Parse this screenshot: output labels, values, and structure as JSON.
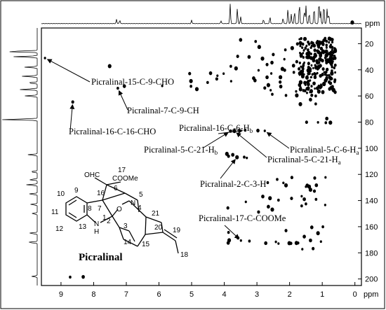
{
  "chart_data": {
    "type": "heatmap",
    "title": "",
    "xlabel": "ppm",
    "ylabel": "ppm",
    "x_reversed": true,
    "y_reversed": true,
    "xlim": [
      9.6,
      -0.2
    ],
    "ylim": [
      8,
      205
    ],
    "x_ticks": [
      {
        "value": 9,
        "label": "9"
      },
      {
        "value": 8,
        "label": "8"
      },
      {
        "value": 7,
        "label": "7"
      },
      {
        "value": 6,
        "label": "6"
      },
      {
        "value": 5,
        "label": "5"
      },
      {
        "value": 4,
        "label": "4"
      },
      {
        "value": 3,
        "label": "3"
      },
      {
        "value": 2,
        "label": "2"
      },
      {
        "value": 1,
        "label": "1"
      },
      {
        "value": 0,
        "label": "0"
      }
    ],
    "y_ticks": [
      {
        "value": 20,
        "label": "20"
      },
      {
        "value": 40,
        "label": "40"
      },
      {
        "value": 60,
        "label": "60"
      },
      {
        "value": 80,
        "label": "80"
      },
      {
        "value": 100,
        "label": "100"
      },
      {
        "value": 120,
        "label": "120"
      },
      {
        "value": 140,
        "label": "140"
      },
      {
        "value": 160,
        "label": "160"
      },
      {
        "value": 180,
        "label": "180"
      },
      {
        "value": 200,
        "label": "200"
      }
    ],
    "peaks": [
      [
        9.49,
        31.0
      ],
      [
        8.64,
        64.6
      ],
      [
        7.51,
        37.2
      ],
      [
        7.26,
        54.1
      ],
      [
        7.06,
        52.5
      ],
      [
        5.9,
        52.3
      ],
      [
        5.06,
        42.9
      ],
      [
        5.02,
        48.6
      ],
      [
        5.02,
        52.6
      ],
      [
        4.42,
        42.6
      ],
      [
        4.02,
        42.9
      ],
      [
        3.81,
        86.9
      ],
      [
        3.69,
        86.8
      ],
      [
        3.36,
        86.2
      ],
      [
        2.97,
        86.5
      ],
      [
        2.76,
        86.7
      ],
      [
        2.76,
        53.9
      ],
      [
        2.65,
        51.7
      ],
      [
        2.53,
        58.7
      ],
      [
        3.1,
        46.4
      ],
      [
        2.58,
        55.6
      ],
      [
        2.69,
        36.0
      ],
      [
        2.93,
        22.5
      ],
      [
        3.04,
        18.3
      ],
      [
        3.5,
        17.1
      ],
      [
        3.79,
        48.7
      ],
      [
        3.59,
        29.7
      ],
      [
        3.64,
        38.9
      ],
      [
        3.8,
        37.3
      ],
      [
        3.24,
        30.1
      ],
      [
        4.21,
        44.5
      ],
      [
        4.23,
        47.0
      ],
      [
        4.84,
        54.8
      ],
      [
        4.51,
        49.7
      ],
      [
        3.06,
        48.1
      ],
      [
        3.34,
        141.0
      ],
      [
        3.89,
        145.7
      ],
      [
        3.61,
        106.9
      ],
      [
        3.39,
        106.8
      ],
      [
        3.74,
        105.0
      ],
      [
        3.31,
        107.4
      ],
      [
        3.87,
        106.1
      ],
      [
        3.92,
        104.3
      ],
      [
        3.23,
        171.0
      ],
      [
        3.88,
        172.4
      ],
      [
        3.49,
        170.6
      ],
      [
        3.58,
        168.6
      ],
      [
        3.85,
        170.4
      ],
      [
        3.87,
        164.4
      ],
      [
        2.73,
        172.6
      ],
      [
        2.42,
        171.6
      ],
      [
        2.95,
        148.8
      ],
      [
        2.53,
        146.9
      ],
      [
        2.38,
        123.8
      ],
      [
        2.65,
        144.7
      ],
      [
        2.19,
        126.5
      ],
      [
        1.94,
        138.4
      ],
      [
        2.6,
        138.2
      ],
      [
        2.67,
        126.3
      ],
      [
        2.82,
        136.9
      ],
      [
        1.63,
        136.7
      ],
      [
        1.93,
        122.4
      ],
      [
        2.11,
        128.4
      ],
      [
        2.34,
        139.7
      ],
      [
        1.55,
        167.6
      ],
      [
        2.34,
        172.9
      ],
      [
        2.11,
        163.0
      ],
      [
        2.01,
        172.6
      ],
      [
        1.74,
        172.5
      ],
      [
        1.36,
        170.5
      ],
      [
        1.61,
        177.2
      ],
      [
        1.96,
        172.8
      ],
      [
        1.13,
        165.0
      ],
      [
        0.98,
        160.1
      ],
      [
        1.32,
        160.5
      ],
      [
        1.04,
        171.4
      ],
      [
        1.28,
        176.8
      ],
      [
        1.79,
        172.5
      ],
      [
        1.19,
        139.1
      ],
      [
        1.46,
        128.4
      ],
      [
        1.5,
        129.4
      ],
      [
        1.46,
        128.7
      ],
      [
        1.4,
        129.4
      ],
      [
        1.5,
        142.6
      ],
      [
        1.18,
        128.3
      ],
      [
        0.91,
        143.4
      ],
      [
        1.24,
        132.8
      ],
      [
        1.36,
        131.7
      ],
      [
        1.63,
        144.1
      ],
      [
        1.55,
        139.0
      ],
      [
        0.9,
        122.3
      ],
      [
        1.23,
        122.8
      ],
      [
        0.75,
        80.4
      ],
      [
        0.89,
        80.5
      ],
      [
        0.86,
        77.3
      ],
      [
        1.13,
        80.2
      ],
      [
        1.48,
        80.1
      ],
      [
        1.67,
        66.3
      ],
      [
        1.2,
        66.1
      ],
      [
        1.36,
        62.8
      ],
      [
        1.67,
        21.7
      ],
      [
        1.76,
        20.2
      ],
      [
        1.53,
        16.4
      ],
      [
        1.64,
        28.2
      ],
      [
        1.12,
        21.2
      ],
      [
        0.96,
        27.1
      ],
      [
        1.78,
        33.8
      ],
      [
        1.92,
        23.4
      ],
      [
        1.87,
        41.9
      ],
      [
        1.25,
        50.4
      ],
      [
        0.91,
        43.6
      ],
      [
        2.5,
        28.3
      ],
      [
        2.83,
        31.4
      ],
      [
        1.58,
        36.8
      ],
      [
        1.88,
        36.8
      ],
      [
        2.16,
        31.9
      ],
      [
        2.15,
        40.3
      ],
      [
        2.22,
        39.3
      ],
      [
        2.13,
        24.7
      ],
      [
        2.54,
        34.5
      ],
      [
        2.56,
        42.8
      ],
      [
        2.29,
        49.4
      ],
      [
        2.28,
        45.7
      ],
      [
        2.11,
        59.6
      ],
      [
        2.69,
        45.7
      ],
      [
        2.95,
        40.4
      ],
      [
        1.71,
        39.3
      ],
      [
        1.78,
        59.6
      ],
      [
        1.2,
        60.0
      ],
      [
        2.27,
        52.8
      ],
      [
        1.8,
        56.5
      ],
      [
        1.32,
        59.5
      ],
      [
        0.08,
        3.8
      ],
      [
        8.72,
        198.6
      ],
      [
        8.32,
        198.4
      ]
    ],
    "peak_cluster": {
      "x_range": [
        0.6,
        1.7
      ],
      "y_range": [
        16,
        58
      ],
      "count": 220
    },
    "annotations": [
      {
        "text": "Picralinal-15-C-9-CHO",
        "sub": "",
        "x": 9.49,
        "y": 31.0
      },
      {
        "text": "Picralinal-7-C-9-CH",
        "sub": "",
        "x": 7.26,
        "y": 54.1
      },
      {
        "text": "Picralinal-16-C-16-CHO",
        "sub": "",
        "x": 8.64,
        "y": 64.6
      },
      {
        "text": "Picralinal-16-C-6-H",
        "sub": "b",
        "x": 3.36,
        "y": 86.2
      },
      {
        "text": "Picralinal-5-C-21-H",
        "sub": "b",
        "x": 3.81,
        "y": 86.9
      },
      {
        "text": "Picralinal-5-C-6-H",
        "sub": "a",
        "x": 2.76,
        "y": 86.7
      },
      {
        "text": "Picralinal-5-C-21-H",
        "sub": "a",
        "x": 3.69,
        "y": 86.8
      },
      {
        "text": "Picralinal-2-C-3-H",
        "sub": "",
        "x": 3.61,
        "y": 106.9
      },
      {
        "text": "Picralinal-17-C-COOMe",
        "sub": "",
        "x": 3.49,
        "y": 170.6
      }
    ]
  },
  "molecule": {
    "name": "Picralinal",
    "atom_labels": [
      "OHC",
      "17",
      "COOMe",
      "16",
      "6",
      "5",
      "10",
      "9",
      "8",
      "7",
      "11",
      "12",
      "13",
      "N",
      "H",
      "1",
      "2",
      "O",
      "4",
      "N",
      "21",
      "3",
      "20",
      "19",
      "14",
      "15",
      "18"
    ]
  }
}
